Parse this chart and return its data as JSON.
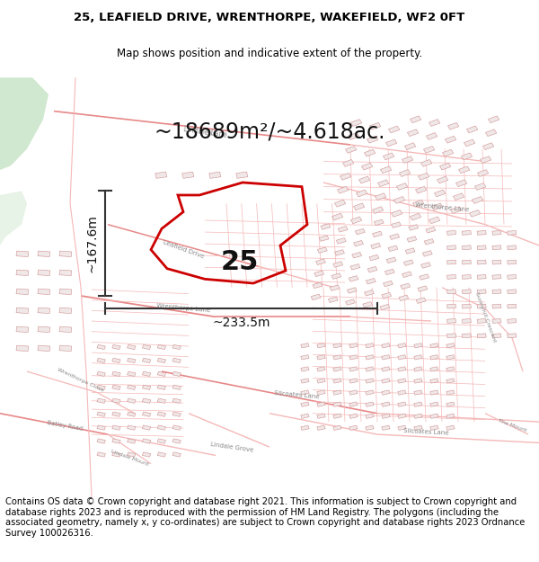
{
  "title_line1": "25, LEAFIELD DRIVE, WRENTHORPE, WAKEFIELD, WF2 0FT",
  "title_line2": "Map shows position and indicative extent of the property.",
  "area_text": "~18689m²/~4.618ac.",
  "label_number": "25",
  "dim_horizontal": "~233.5m",
  "dim_vertical": "~167.6m",
  "footer_text": "Contains OS data © Crown copyright and database right 2021. This information is subject to Crown copyright and database rights 2023 and is reproduced with the permission of HM Land Registry. The polygons (including the associated geometry, namely x, y co-ordinates) are subject to Crown copyright and database rights 2023 Ordnance Survey 100026316.",
  "bg_map": "#ffffff",
  "road_color_light": "#f5b8b8",
  "road_color_med": "#e88888",
  "building_color": "#e8d0d0",
  "building_edge": "#d09090",
  "polygon_edge": "#cc0000",
  "green_fill": "#d0e8d0",
  "title_fontsize": 9.5,
  "subtitle_fontsize": 8.5,
  "area_fontsize": 17,
  "label_fontsize": 22,
  "dim_fontsize": 10,
  "footer_fontsize": 7.2,
  "arrow_color": "#333333",
  "text_color": "#111111"
}
